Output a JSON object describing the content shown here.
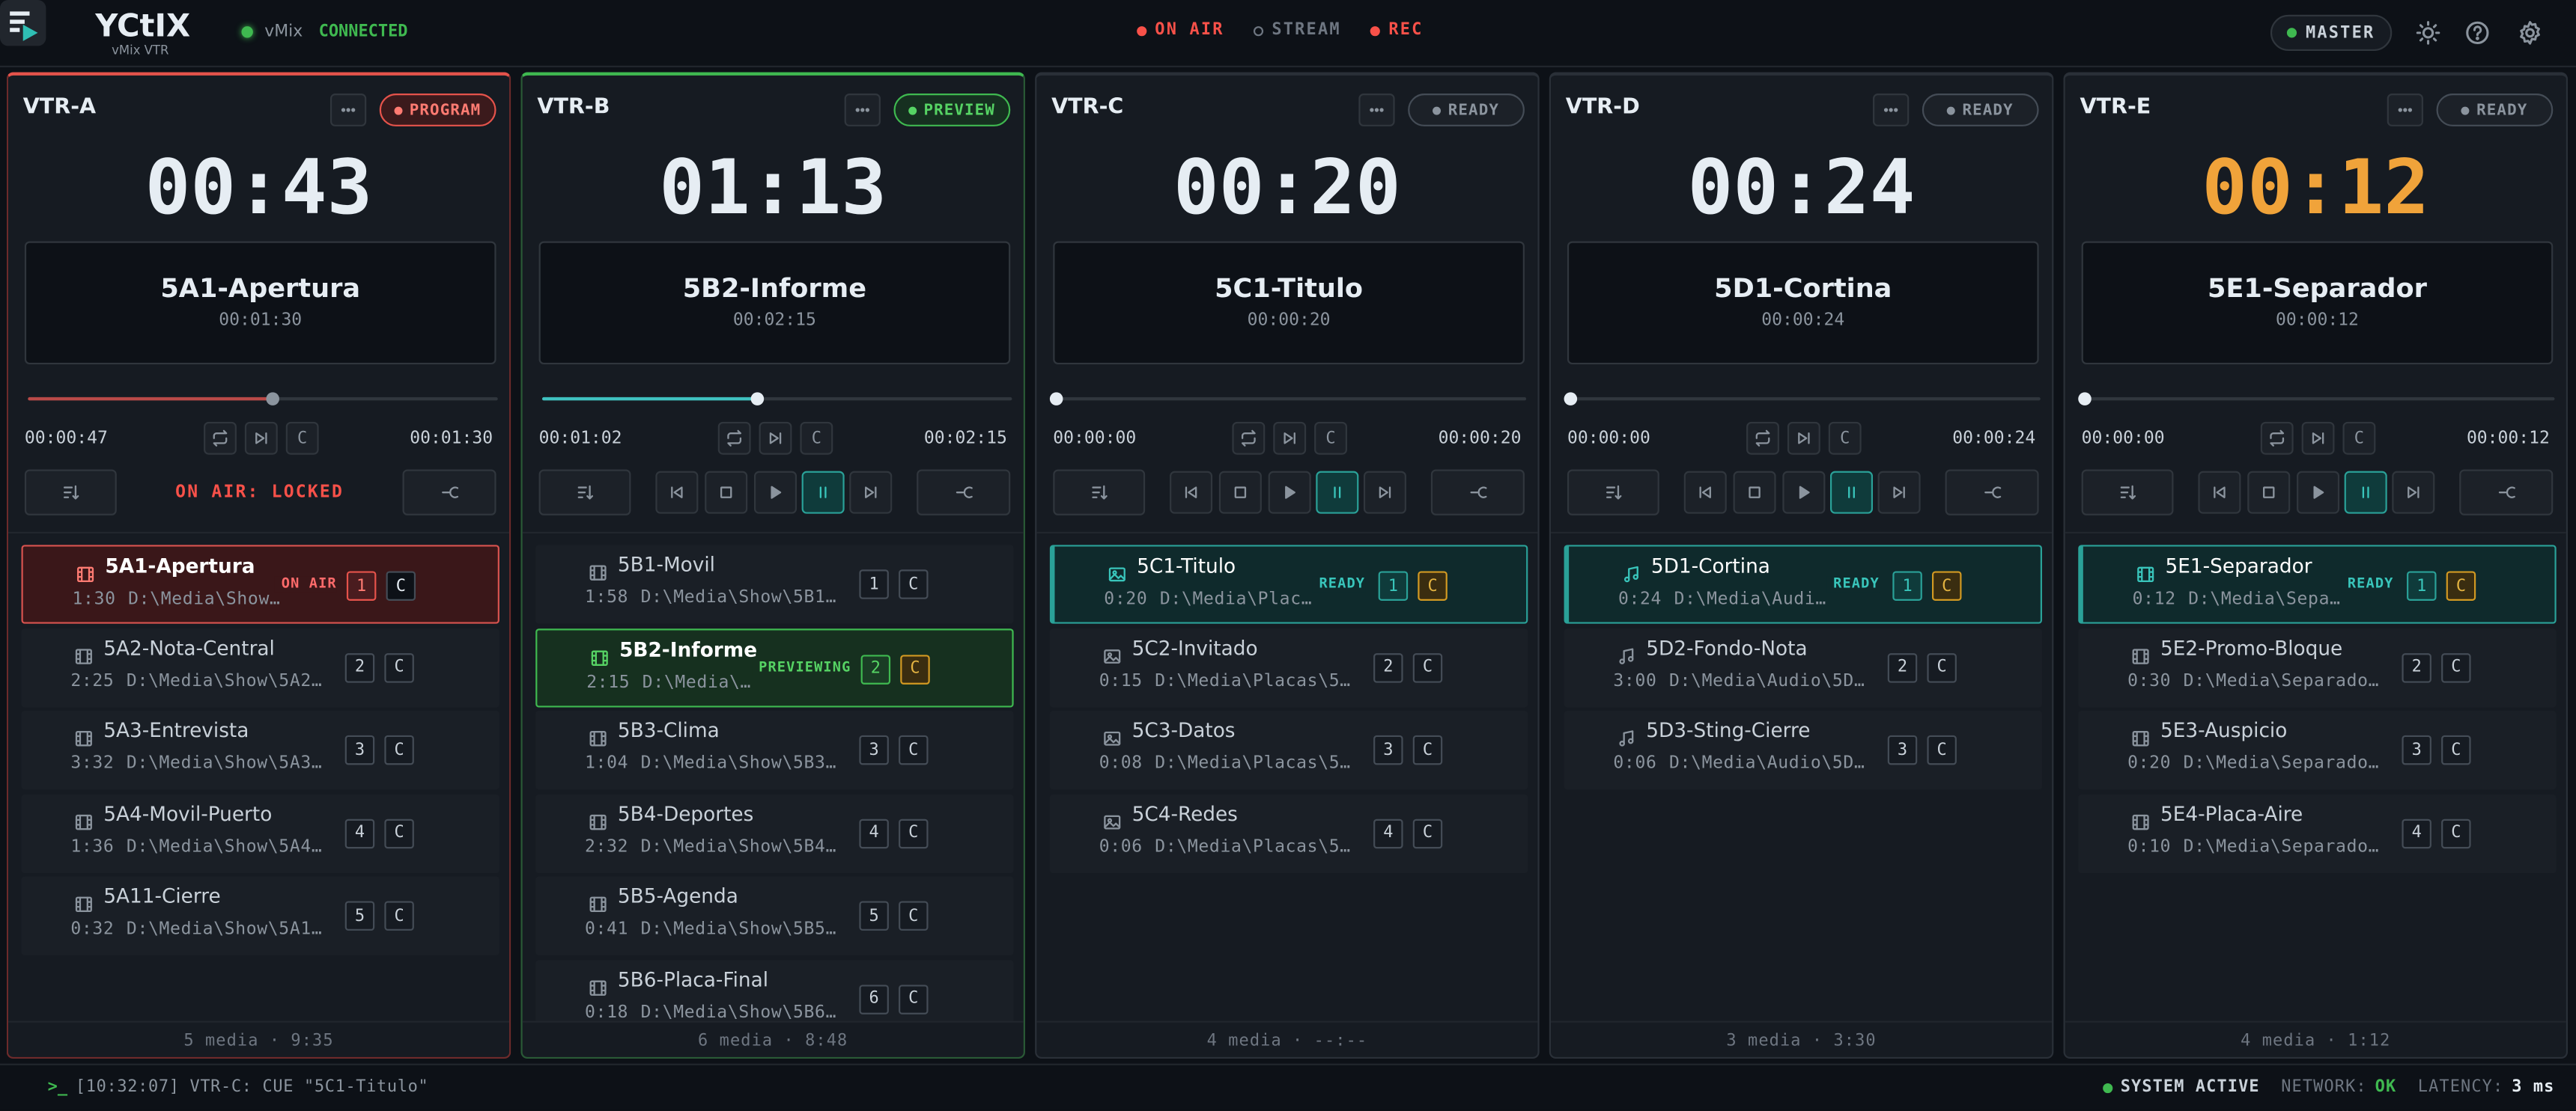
{
  "labels": {
    "cue": "C"
  },
  "header": {
    "brand": "YCtIX",
    "subtitle": "vMix VTR",
    "vmix": "vMix",
    "connection": "CONNECTED",
    "indicators": [
      {
        "label": "ON AIR",
        "state": "on"
      },
      {
        "label": "STREAM",
        "state": "off"
      },
      {
        "label": "REC",
        "state": "on"
      }
    ],
    "master": "MASTER"
  },
  "vtrs": [
    {
      "name": "VTR-A",
      "status": "PROGRAM",
      "mode": "program",
      "timer": "00:43",
      "title": "5A1-Apertura",
      "duration": "00:01:30",
      "elapsed": "00:00:47",
      "total": "00:01:30",
      "lock": "ON AIR: LOCKED",
      "footer": "5 media · 9:35",
      "items": [
        {
          "name": "5A1-Apertura",
          "duration": "1:30",
          "path": "D:\\Media\\Show…",
          "kind": "video",
          "index": 1,
          "badge": "ON AIR",
          "state": "on-air"
        },
        {
          "name": "5A2-Nota-Central",
          "duration": "2:25",
          "path": "D:\\Media\\Show\\5A2…",
          "kind": "video",
          "index": 2
        },
        {
          "name": "5A3-Entrevista",
          "duration": "3:32",
          "path": "D:\\Media\\Show\\5A3…",
          "kind": "video",
          "index": 3
        },
        {
          "name": "5A4-Movil-Puerto",
          "duration": "1:36",
          "path": "D:\\Media\\Show\\5A4…",
          "kind": "video",
          "index": 4
        },
        {
          "name": "5A11-Cierre",
          "duration": "0:32",
          "path": "D:\\Media\\Show\\5A1…",
          "kind": "video",
          "index": 5
        }
      ]
    },
    {
      "name": "VTR-B",
      "status": "PREVIEW",
      "mode": "preview",
      "timer": "01:13",
      "title": "5B2-Informe",
      "duration": "00:02:15",
      "elapsed": "00:01:02",
      "total": "00:02:15",
      "footer": "6 media · 8:48",
      "items": [
        {
          "name": "5B1-Movil",
          "duration": "1:58",
          "path": "D:\\Media\\Show\\5B1…",
          "kind": "video",
          "index": 1
        },
        {
          "name": "5B2-Informe",
          "duration": "2:15",
          "path": "D:\\Media\\…",
          "kind": "video",
          "index": 2,
          "badge": "PREVIEWING",
          "state": "previewing"
        },
        {
          "name": "5B3-Clima",
          "duration": "1:04",
          "path": "D:\\Media\\Show\\5B3…",
          "kind": "video",
          "index": 3
        },
        {
          "name": "5B4-Deportes",
          "duration": "2:32",
          "path": "D:\\Media\\Show\\5B4…",
          "kind": "video",
          "index": 4
        },
        {
          "name": "5B5-Agenda",
          "duration": "0:41",
          "path": "D:\\Media\\Show\\5B5…",
          "kind": "video",
          "index": 5
        },
        {
          "name": "5B6-Placa-Final",
          "duration": "0:18",
          "path": "D:\\Media\\Show\\5B6…",
          "kind": "video",
          "index": 6
        }
      ]
    },
    {
      "name": "VTR-C",
      "status": "READY",
      "mode": "ready",
      "timer": "00:20",
      "title": "5C1-Titulo",
      "duration": "00:00:20",
      "elapsed": "00:00:00",
      "total": "00:00:20",
      "footer": "4 media · --:--",
      "items": [
        {
          "name": "5C1-Titulo",
          "duration": "0:20",
          "path": "D:\\Media\\Plac…",
          "kind": "image",
          "index": 1,
          "badge": "READY",
          "state": "ready"
        },
        {
          "name": "5C2-Invitado",
          "duration": "0:15",
          "path": "D:\\Media\\Placas\\5…",
          "kind": "image",
          "index": 2
        },
        {
          "name": "5C3-Datos",
          "duration": "0:08",
          "path": "D:\\Media\\Placas\\5…",
          "kind": "image",
          "index": 3
        },
        {
          "name": "5C4-Redes",
          "duration": "0:06",
          "path": "D:\\Media\\Placas\\5…",
          "kind": "image",
          "index": 4
        }
      ]
    },
    {
      "name": "VTR-D",
      "status": "READY",
      "mode": "ready",
      "timer": "00:24",
      "title": "5D1-Cortina",
      "duration": "00:00:24",
      "elapsed": "00:00:00",
      "total": "00:00:24",
      "footer": "3 media · 3:30",
      "items": [
        {
          "name": "5D1-Cortina",
          "duration": "0:24",
          "path": "D:\\Media\\Audi…",
          "kind": "audio",
          "index": 1,
          "badge": "READY",
          "state": "ready"
        },
        {
          "name": "5D2-Fondo-Nota",
          "duration": "3:00",
          "path": "D:\\Media\\Audio\\5D…",
          "kind": "audio",
          "index": 2
        },
        {
          "name": "5D3-Sting-Cierre",
          "duration": "0:06",
          "path": "D:\\Media\\Audio\\5D…",
          "kind": "audio",
          "index": 3
        }
      ]
    },
    {
      "name": "VTR-E",
      "status": "READY",
      "mode": "ready",
      "timer": "00:12",
      "timer_color": "#f0a33a",
      "title": "5E1-Separador",
      "duration": "00:00:12",
      "elapsed": "00:00:00",
      "total": "00:00:12",
      "footer": "4 media · 1:12",
      "items": [
        {
          "name": "5E1-Separador",
          "duration": "0:12",
          "path": "D:\\Media\\Sepa…",
          "kind": "video",
          "index": 1,
          "badge": "READY",
          "state": "ready"
        },
        {
          "name": "5E2-Promo-Bloque",
          "duration": "0:30",
          "path": "D:\\Media\\Separado…",
          "kind": "video",
          "index": 2
        },
        {
          "name": "5E3-Auspicio",
          "duration": "0:20",
          "path": "D:\\Media\\Separado…",
          "kind": "video",
          "index": 3
        },
        {
          "name": "5E4-Placa-Aire",
          "duration": "0:10",
          "path": "D:\\Media\\Separado…",
          "kind": "video",
          "index": 4
        }
      ]
    }
  ],
  "status_bar": {
    "prompt": ">_",
    "log": "[10:32:07] VTR-C: CUE \"5C1-Titulo\"",
    "system": "SYSTEM ACTIVE",
    "network_label": "NETWORK:",
    "network": "OK",
    "latency_label": "LATENCY:",
    "latency": "3 ms"
  }
}
